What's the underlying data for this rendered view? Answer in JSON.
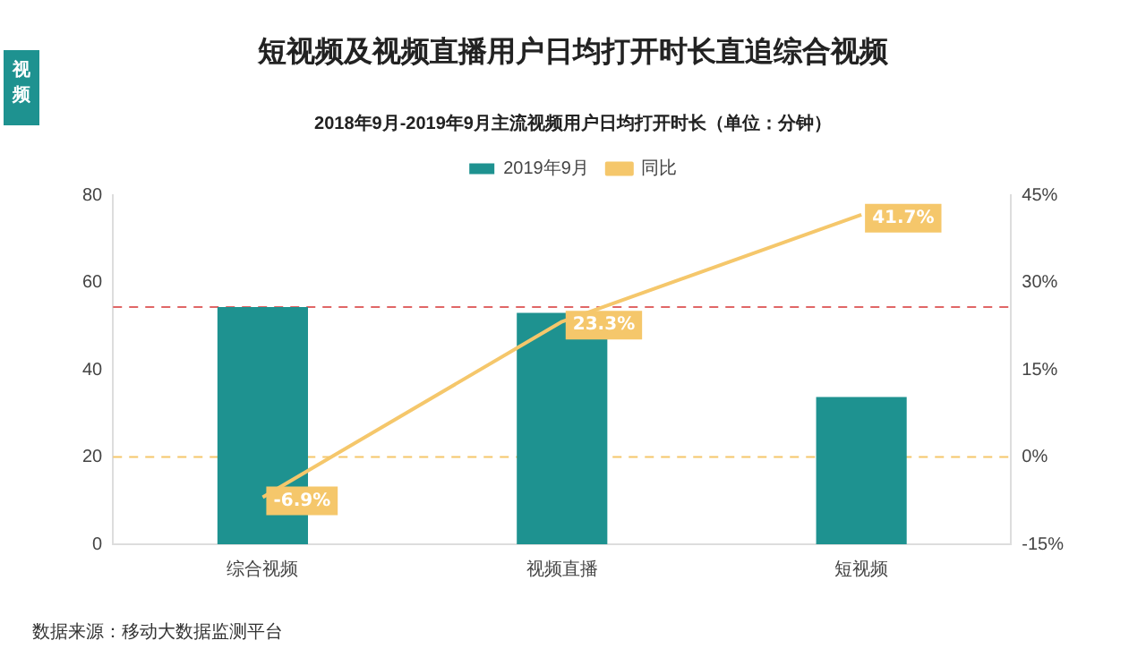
{
  "chart_data": {
    "type": "bar",
    "title": "短视频及视频直播用户日均打开时长直追综合视频",
    "subtitle": "2018年9月-2019年9月主流视频用户日均打开时长（单位：分钟）",
    "categories": [
      "综合视频",
      "视频直播",
      "短视频"
    ],
    "series": [
      {
        "name": "2019年9月",
        "color": "#1e9290",
        "values": [
          54.4,
          53.1,
          33.8
        ]
      },
      {
        "name": "同比",
        "type": "line",
        "axis": "y2",
        "color": "#f5c76b",
        "values": [
          -6.9,
          23.3,
          41.7
        ],
        "value_labels": [
          "-6.9%",
          "23.3%",
          "41.7%"
        ]
      }
    ],
    "ylim": [
      0,
      80
    ],
    "yticks": [
      0,
      20,
      40,
      60,
      80
    ],
    "y2lim": [
      -15,
      45
    ],
    "y2ticks": [
      {
        "value": -15,
        "label": "-15%"
      },
      {
        "value": 0,
        "label": "0%"
      },
      {
        "value": 15,
        "label": "15%"
      },
      {
        "value": 30,
        "label": "30%"
      },
      {
        "value": 45,
        "label": "45%"
      }
    ],
    "ref_lines": [
      {
        "axis": "y",
        "value": 54.4,
        "color": "#e06666",
        "line_style": "dashed"
      },
      {
        "axis": "y2",
        "value": 0,
        "color": "#f5c76b",
        "line_style": "dashed"
      }
    ],
    "grid": false,
    "legend": "top",
    "marker": "none",
    "annotations": [
      "视频",
      "数据来源：移动大数据监测平台"
    ]
  }
}
